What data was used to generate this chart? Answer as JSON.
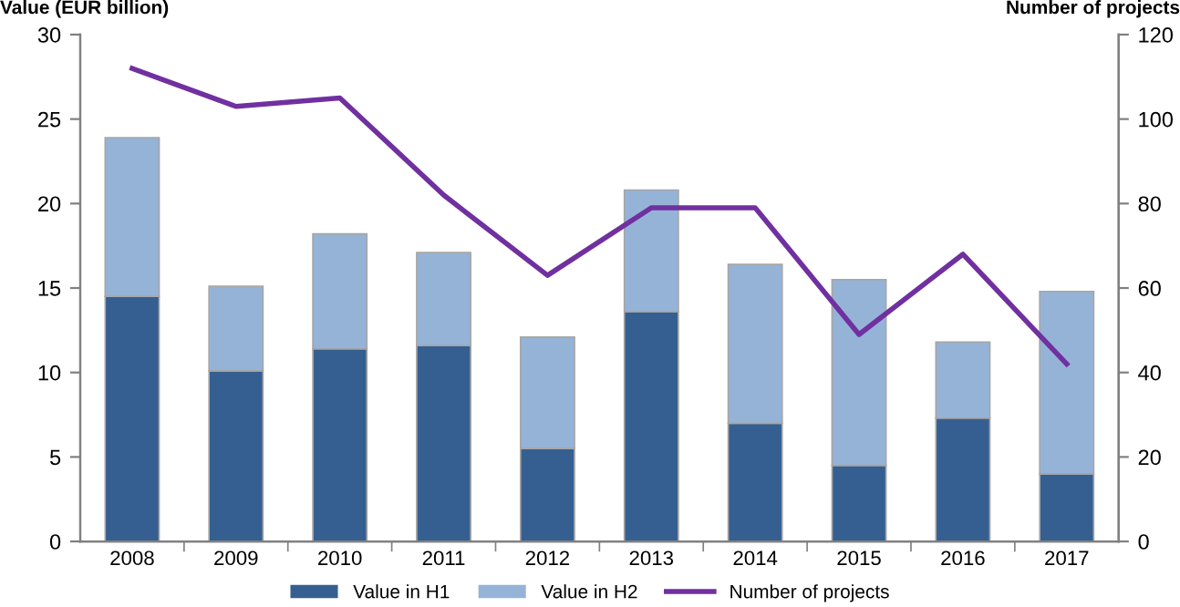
{
  "chart_data": {
    "type": "bar",
    "stacked": true,
    "ylabel": "Value (EUR billion)",
    "y2label": "Number of projects",
    "categories": [
      "2008",
      "2009",
      "2010",
      "2011",
      "2012",
      "2013",
      "2014",
      "2015",
      "2016",
      "2017"
    ],
    "series": [
      {
        "name": "Value in H1",
        "color": "#355f91",
        "values": [
          14.5,
          10.1,
          11.4,
          11.6,
          5.5,
          13.6,
          7.0,
          4.5,
          7.3,
          4.0
        ]
      },
      {
        "name": "Value in H2",
        "color": "#95b3d7",
        "values": [
          9.4,
          5.0,
          6.8,
          5.5,
          6.6,
          7.2,
          9.4,
          11.0,
          4.5,
          10.8
        ]
      },
      {
        "name": "Number of projects",
        "type": "line",
        "axis": "y2",
        "color": "#7030a0",
        "values": [
          112,
          103,
          105,
          82,
          63,
          79,
          79,
          49,
          68,
          42
        ]
      }
    ],
    "ylim": [
      0,
      30
    ],
    "yticks": [
      0,
      5,
      10,
      15,
      20,
      25,
      30
    ],
    "y2lim": [
      0,
      120
    ],
    "y2ticks": [
      0,
      20,
      40,
      60,
      80,
      100,
      120
    ],
    "grid": false,
    "legend": "bottom",
    "marker": "none",
    "line_style": "solid"
  }
}
